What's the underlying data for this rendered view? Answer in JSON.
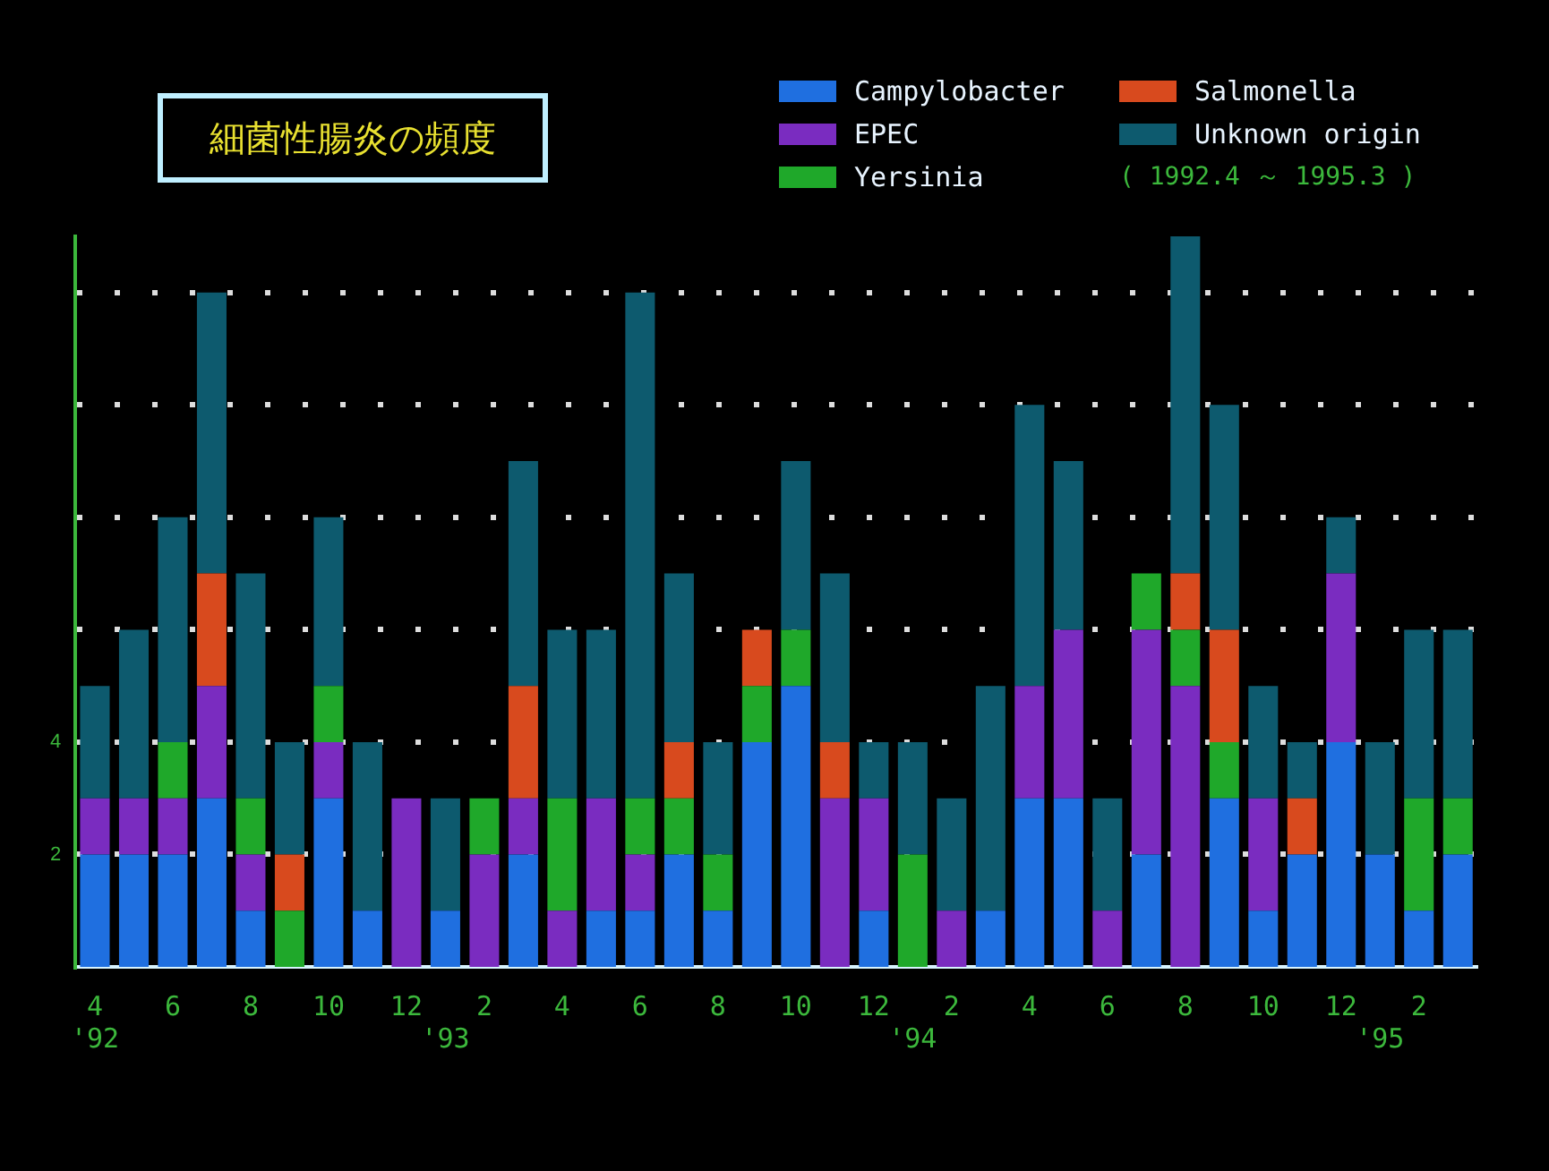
{
  "chart_data": {
    "type": "bar",
    "stacked": true,
    "title": "細菌性腸炎の頻度",
    "subtitle": "( 1992.4 ～ 1995.3 )",
    "categories": [
      "4\n'92",
      null,
      "6",
      null,
      "8",
      null,
      "10",
      null,
      "12",
      "\n'93",
      "2",
      null,
      "4",
      null,
      "6",
      null,
      "8",
      null,
      "10",
      null,
      "12",
      "\n'94",
      "2",
      null,
      "4",
      null,
      "6",
      null,
      "8",
      null,
      "10",
      null,
      "12",
      "\n'95",
      "2",
      null
    ],
    "series": [
      {
        "name": "Campylobacter",
        "color": "#1f6fe0",
        "values": [
          2,
          2,
          2,
          3,
          1,
          0,
          3,
          1,
          0,
          1,
          0,
          2,
          0,
          1,
          1,
          2,
          1,
          4,
          5,
          0,
          1,
          0,
          0,
          1,
          3,
          3,
          0,
          2,
          0,
          3,
          1,
          2,
          4,
          2,
          1,
          2
        ]
      },
      {
        "name": "EPEC",
        "color": "#7a2cc0",
        "values": [
          1,
          1,
          1,
          2,
          1,
          0,
          1,
          0,
          3,
          0,
          2,
          1,
          1,
          2,
          1,
          0,
          0,
          0,
          0,
          3,
          2,
          0,
          1,
          0,
          2,
          3,
          1,
          4,
          5,
          0,
          2,
          0,
          3,
          0,
          0,
          0
        ]
      },
      {
        "name": "Yersinia",
        "color": "#1fa82a",
        "values": [
          0,
          0,
          1,
          0,
          1,
          1,
          1,
          0,
          0,
          0,
          1,
          0,
          2,
          0,
          1,
          1,
          1,
          1,
          1,
          0,
          0,
          2,
          0,
          0,
          0,
          0,
          0,
          1,
          1,
          1,
          0,
          0,
          0,
          0,
          2,
          1
        ]
      },
      {
        "name": "Salmonella",
        "color": "#d84a1e",
        "values": [
          0,
          0,
          0,
          2,
          0,
          1,
          0,
          0,
          0,
          0,
          0,
          2,
          0,
          0,
          0,
          1,
          0,
          1,
          0,
          1,
          0,
          0,
          0,
          0,
          0,
          0,
          0,
          0,
          1,
          2,
          0,
          1,
          0,
          0,
          0,
          0
        ]
      },
      {
        "name": "Unknown origin",
        "color": "#0d5a6e",
        "values": [
          2,
          3,
          4,
          5,
          4,
          2,
          3,
          3,
          0,
          2,
          0,
          4,
          3,
          3,
          9,
          3,
          2,
          0,
          3,
          3,
          1,
          2,
          2,
          4,
          5,
          3,
          2,
          0,
          6,
          4,
          2,
          1,
          1,
          2,
          3,
          3
        ]
      }
    ],
    "ylim": [
      0,
      13
    ],
    "yticks": [
      2,
      4,
      {
        "value": 6,
        "label": null
      },
      {
        "value": 8,
        "label": null
      },
      {
        "value": 10,
        "label": null
      },
      {
        "value": 12,
        "label": null
      }
    ],
    "grid": "y",
    "legend": "top right"
  }
}
